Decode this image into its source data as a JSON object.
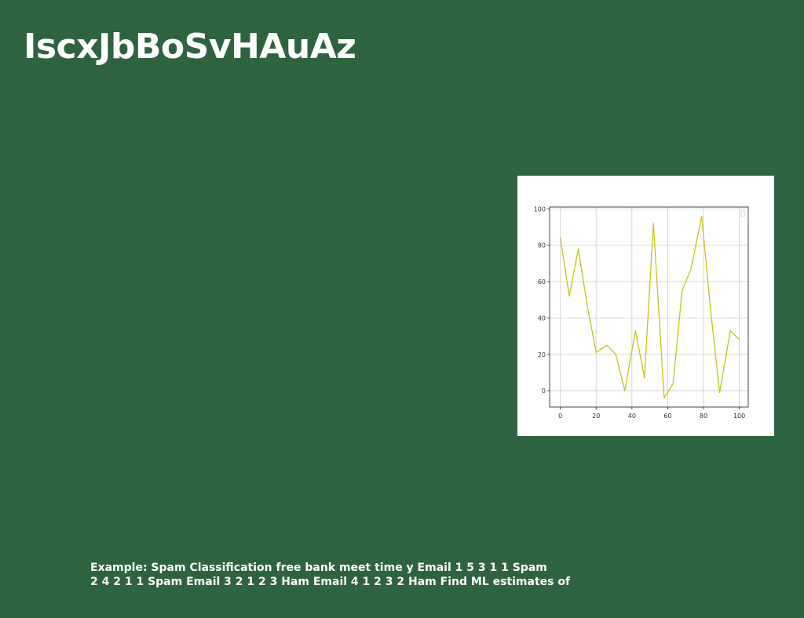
{
  "slide": {
    "title": "IscxJbBoSvHAuAz",
    "caption_lines": [
      "Example: Spam Classification free bank meet time y Email 1 5 3 1 1 Spam",
      "2 4 2 1 1 Spam Email 3 2 1 2 3 Ham Email 4 1 2 3 2 Ham Find ML estimates of"
    ]
  },
  "chart_data": {
    "type": "line",
    "x": [
      0,
      5,
      10,
      15,
      20,
      26,
      31,
      36,
      42,
      47,
      52,
      58,
      63,
      68,
      73,
      79,
      84,
      89,
      95,
      100
    ],
    "series": [
      {
        "values": [
          84,
          52,
          78,
          47,
          21,
          25,
          20,
          0,
          33,
          7,
          92,
          -4,
          4,
          55,
          67,
          96,
          44,
          -1,
          33,
          28
        ],
        "color": "#c8c41a"
      }
    ],
    "xlim": [
      -6,
      105
    ],
    "ylim": [
      -9,
      101
    ],
    "xticks": [
      0,
      20,
      40,
      60,
      80,
      100
    ],
    "yticks": [
      0,
      20,
      40,
      60,
      80,
      100
    ],
    "xtick_labels": [
      "0",
      "20",
      "40",
      "60",
      "80",
      "100"
    ],
    "ytick_labels": [
      "0",
      "20",
      "40",
      "60",
      "80",
      "100"
    ],
    "grid": true,
    "legend": "top-right, empty box"
  }
}
